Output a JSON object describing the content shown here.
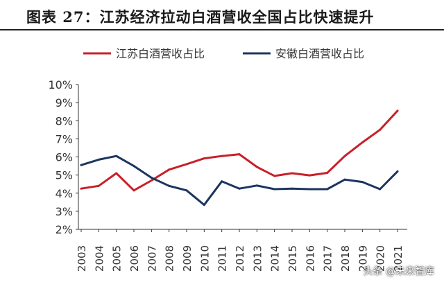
{
  "title": "图表 27：江苏经济拉动白酒营收全国占比快速提升",
  "watermark": "头条 @未来智库",
  "colors": {
    "jiangsu": "#c8202a",
    "anhui": "#1c3560",
    "axis": "#333333"
  },
  "chart_data": {
    "type": "line",
    "x": [
      "2003",
      "2004",
      "2005",
      "2006",
      "2007",
      "2008",
      "2009",
      "2010",
      "2011",
      "2012",
      "2013",
      "2014",
      "2015",
      "2016",
      "2017",
      "2018",
      "2019",
      "2020",
      "2021"
    ],
    "ylim": [
      2,
      10
    ],
    "yticks": [
      "2%",
      "3%",
      "4%",
      "5%",
      "6%",
      "7%",
      "8%",
      "9%",
      "10%"
    ],
    "grid": false,
    "legend_position": "top",
    "series": [
      {
        "name": "江苏白酒营收占比",
        "color": "#c8202a",
        "values": [
          4.25,
          4.4,
          5.1,
          4.15,
          4.7,
          5.3,
          5.6,
          5.92,
          6.05,
          6.15,
          5.45,
          4.95,
          5.1,
          4.98,
          5.12,
          6.05,
          6.8,
          7.5,
          8.55
        ]
      },
      {
        "name": "安徽白酒营收占比",
        "color": "#1c3560",
        "values": [
          5.55,
          5.85,
          6.05,
          5.5,
          4.85,
          4.4,
          4.15,
          3.35,
          4.65,
          4.25,
          4.42,
          4.22,
          4.25,
          4.22,
          4.22,
          4.75,
          4.62,
          4.22,
          5.2
        ]
      }
    ]
  }
}
